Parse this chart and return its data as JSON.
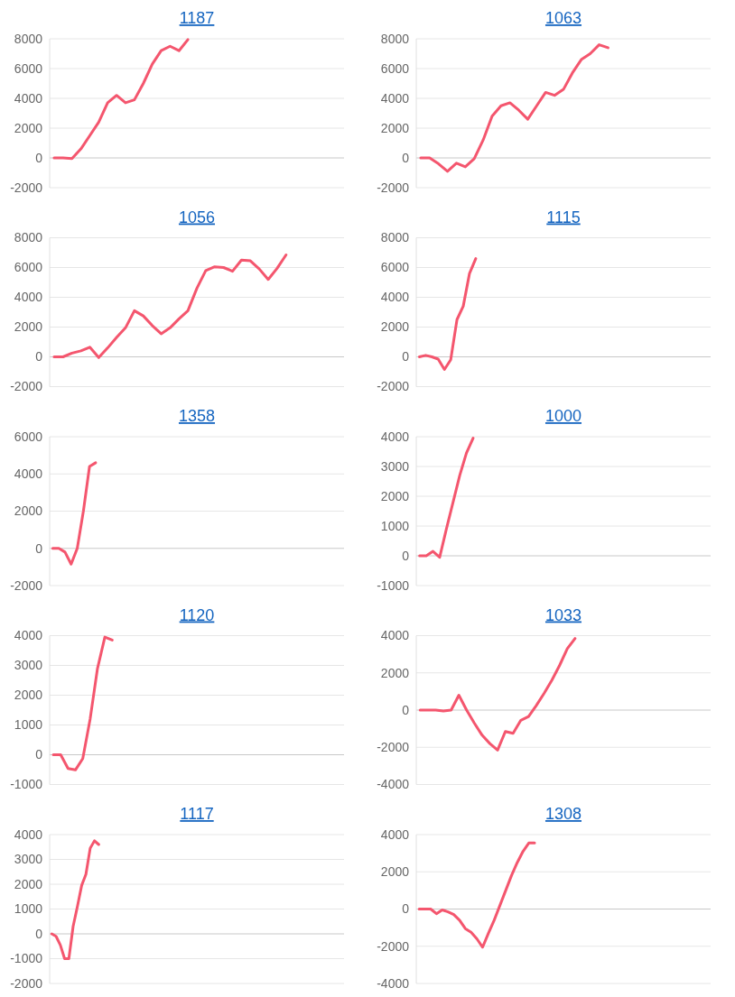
{
  "chart_data": [
    {
      "type": "line",
      "title": "1187",
      "color": "#f4566e",
      "grid": "y",
      "ylim": [
        -2000,
        8000
      ],
      "yticks": [
        -2000,
        0,
        2000,
        4000,
        6000,
        8000
      ],
      "categories": [
        null,
        null,
        null,
        null,
        null,
        null,
        null,
        null,
        null,
        null,
        null,
        null,
        null,
        null,
        null,
        null,
        null,
        null,
        null,
        null,
        null,
        null,
        null,
        null,
        null,
        null,
        null,
        null,
        null,
        null,
        null,
        null,
        null
      ],
      "values": [
        0,
        0,
        -50,
        600,
        1500,
        2400,
        3700,
        4200,
        3700,
        3900,
        5000,
        6300,
        7200,
        7500,
        7200,
        7950,
        null,
        null,
        null,
        null,
        null,
        null,
        null,
        null,
        null,
        null,
        null,
        null,
        null,
        null,
        null,
        null,
        null
      ]
    },
    {
      "type": "line",
      "title": "1063",
      "color": "#f4566e",
      "grid": "y",
      "ylim": [
        -2000,
        8000
      ],
      "yticks": [
        -2000,
        0,
        2000,
        4000,
        6000,
        8000
      ],
      "categories": [
        null,
        null,
        null,
        null,
        null,
        null,
        null,
        null,
        null,
        null,
        null,
        null,
        null,
        null,
        null,
        null,
        null,
        null,
        null,
        null,
        null,
        null,
        null,
        null,
        null,
        null,
        null,
        null,
        null,
        null,
        null,
        null,
        null
      ],
      "values": [
        0,
        0,
        -400,
        -900,
        -350,
        -600,
        -50,
        1200,
        2800,
        3500,
        3700,
        3200,
        2600,
        3500,
        4400,
        4200,
        4600,
        5700,
        6600,
        7000,
        7600,
        7400,
        null,
        null,
        null,
        null,
        null,
        null,
        null,
        null,
        null,
        null,
        null
      ]
    },
    {
      "type": "line",
      "title": "1056",
      "color": "#f4566e",
      "grid": "y",
      "ylim": [
        -2000,
        8000
      ],
      "yticks": [
        -2000,
        0,
        2000,
        4000,
        6000,
        8000
      ],
      "categories": [
        null,
        null,
        null,
        null,
        null,
        null,
        null,
        null,
        null,
        null,
        null,
        null,
        null,
        null,
        null,
        null,
        null,
        null,
        null,
        null,
        null,
        null,
        null,
        null,
        null,
        null,
        null,
        null,
        null,
        null,
        null,
        null,
        null
      ],
      "values": [
        0,
        0,
        250,
        400,
        650,
        -50,
        600,
        1300,
        1950,
        3100,
        2750,
        2100,
        1550,
        1950,
        2550,
        3100,
        4600,
        5800,
        6050,
        6000,
        5750,
        6500,
        6450,
        5900,
        5200,
        5950,
        6850,
        null,
        null,
        null,
        null,
        null,
        null
      ]
    },
    {
      "type": "line",
      "title": "1115",
      "color": "#f4566e",
      "grid": "y",
      "ylim": [
        -2000,
        8000
      ],
      "yticks": [
        -2000,
        0,
        2000,
        4000,
        6000,
        8000
      ],
      "categories": [
        null,
        null,
        null,
        null,
        null,
        null,
        null,
        null,
        null,
        null,
        null,
        null,
        null,
        null,
        null,
        null,
        null,
        null,
        null,
        null,
        null,
        null,
        null,
        null,
        null,
        null,
        null,
        null,
        null,
        null,
        null,
        null,
        null,
        null,
        null,
        null,
        null,
        null,
        null,
        null,
        null,
        null,
        null,
        null,
        null,
        null,
        null
      ],
      "values": [
        0,
        100,
        0,
        -150,
        -850,
        -200,
        2500,
        3400,
        5600,
        6600,
        null,
        null,
        null,
        null,
        null,
        null,
        null,
        null,
        null,
        null,
        null,
        null,
        null,
        null,
        null,
        null,
        null,
        null,
        null,
        null,
        null,
        null,
        null,
        null,
        null,
        null,
        null,
        null,
        null,
        null,
        null,
        null,
        null,
        null,
        null,
        null,
        null
      ]
    },
    {
      "type": "line",
      "title": "1358",
      "color": "#f4566e",
      "grid": "y",
      "ylim": [
        -2000,
        6000
      ],
      "yticks": [
        -2000,
        0,
        2000,
        4000,
        6000
      ],
      "categories": [
        null,
        null,
        null,
        null,
        null,
        null,
        null,
        null,
        null,
        null,
        null,
        null,
        null,
        null,
        null,
        null,
        null,
        null,
        null,
        null,
        null,
        null,
        null,
        null,
        null,
        null,
        null,
        null,
        null,
        null,
        null,
        null,
        null,
        null,
        null,
        null,
        null,
        null,
        null,
        null,
        null,
        null,
        null,
        null,
        null,
        null,
        null,
        null
      ],
      "values": [
        0,
        0,
        -200,
        -850,
        0,
        2000,
        4400,
        4600,
        null,
        null,
        null,
        null,
        null,
        null,
        null,
        null,
        null,
        null,
        null,
        null,
        null,
        null,
        null,
        null,
        null,
        null,
        null,
        null,
        null,
        null,
        null,
        null,
        null,
        null,
        null,
        null,
        null,
        null,
        null,
        null,
        null,
        null,
        null,
        null,
        null,
        null,
        null,
        null
      ]
    },
    {
      "type": "line",
      "title": "1000",
      "color": "#f4566e",
      "grid": "y",
      "ylim": [
        -1000,
        4000
      ],
      "yticks": [
        -1000,
        0,
        1000,
        2000,
        3000,
        4000
      ],
      "categories": [
        null,
        null,
        null,
        null,
        null,
        null,
        null,
        null,
        null,
        null,
        null,
        null,
        null,
        null,
        null,
        null,
        null,
        null,
        null,
        null,
        null,
        null,
        null,
        null,
        null,
        null,
        null,
        null,
        null,
        null,
        null,
        null,
        null,
        null,
        null,
        null,
        null,
        null,
        null,
        null,
        null,
        null,
        null,
        null
      ],
      "values": [
        0,
        0,
        150,
        -50,
        900,
        1800,
        2700,
        3450,
        3950,
        null,
        null,
        null,
        null,
        null,
        null,
        null,
        null,
        null,
        null,
        null,
        null,
        null,
        null,
        null,
        null,
        null,
        null,
        null,
        null,
        null,
        null,
        null,
        null,
        null,
        null,
        null,
        null,
        null,
        null,
        null,
        null,
        null,
        null,
        null
      ]
    },
    {
      "type": "line",
      "title": "1120",
      "color": "#f4566e",
      "grid": "y",
      "ylim": [
        -1000,
        4000
      ],
      "yticks": [
        -1000,
        0,
        1000,
        2000,
        3000,
        4000
      ],
      "categories": [
        null,
        null,
        null,
        null,
        null,
        null,
        null,
        null,
        null,
        null,
        null,
        null,
        null,
        null,
        null,
        null,
        null,
        null,
        null,
        null,
        null,
        null,
        null,
        null,
        null,
        null,
        null,
        null,
        null,
        null,
        null,
        null,
        null,
        null,
        null,
        null,
        null,
        null,
        null,
        null
      ],
      "values": [
        0,
        0,
        -460,
        -510,
        -130,
        1200,
        2900,
        3950,
        3850,
        null,
        null,
        null,
        null,
        null,
        null,
        null,
        null,
        null,
        null,
        null,
        null,
        null,
        null,
        null,
        null,
        null,
        null,
        null,
        null,
        null,
        null,
        null,
        null,
        null,
        null,
        null,
        null,
        null,
        null,
        null
      ]
    },
    {
      "type": "line",
      "title": "1033",
      "color": "#f4566e",
      "grid": "y",
      "ylim": [
        -4000,
        4000
      ],
      "yticks": [
        -4000,
        -2000,
        0,
        2000,
        4000
      ],
      "categories": [
        null,
        null,
        null,
        null,
        null,
        null,
        null,
        null,
        null,
        null,
        null,
        null,
        null,
        null,
        null,
        null,
        null,
        null,
        null,
        null,
        null,
        null,
        null,
        null,
        null,
        null,
        null,
        null,
        null,
        null,
        null,
        null,
        null,
        null,
        null,
        null,
        null,
        null
      ],
      "values": [
        0,
        0,
        0,
        -50,
        0,
        800,
        0,
        -700,
        -1350,
        -1800,
        -2150,
        -1150,
        -1250,
        -550,
        -350,
        250,
        900,
        1600,
        2400,
        3300,
        3850,
        null,
        null,
        null,
        null,
        null,
        null,
        null,
        null,
        null,
        null,
        null,
        null,
        null,
        null,
        null,
        null,
        null
      ]
    },
    {
      "type": "line",
      "title": "1117",
      "color": "#f4566e",
      "grid": "y",
      "ylim": [
        -2000,
        4000
      ],
      "yticks": [
        -2000,
        -1000,
        0,
        1000,
        2000,
        3000,
        4000
      ],
      "categories": [
        null,
        null,
        null,
        null,
        null,
        null,
        null,
        null,
        null,
        null,
        null,
        null,
        null,
        null,
        null,
        null,
        null,
        null,
        null,
        null,
        null,
        null,
        null,
        null,
        null,
        null,
        null,
        null,
        null,
        null,
        null,
        null,
        null,
        null,
        null,
        null,
        null,
        null,
        null,
        null,
        null,
        null,
        null,
        null,
        null,
        null,
        null,
        null,
        null,
        null,
        null,
        null,
        null,
        null,
        null,
        null,
        null,
        null,
        null,
        null,
        null,
        null,
        null,
        null,
        null,
        null,
        null,
        null,
        null
      ],
      "values": [
        0,
        -100,
        -450,
        -1000,
        -1000,
        300,
        1100,
        1950,
        2400,
        3450,
        3750,
        3600,
        null,
        null,
        null,
        null,
        null,
        null,
        null,
        null,
        null,
        null,
        null,
        null,
        null,
        null,
        null,
        null,
        null,
        null,
        null,
        null,
        null,
        null,
        null,
        null,
        null,
        null,
        null,
        null,
        null,
        null,
        null,
        null,
        null,
        null,
        null,
        null,
        null,
        null,
        null,
        null,
        null,
        null,
        null,
        null,
        null,
        null,
        null,
        null,
        null,
        null,
        null,
        null,
        null,
        null,
        null,
        null,
        null
      ]
    },
    {
      "type": "line",
      "title": "1308",
      "color": "#f4566e",
      "grid": "y",
      "ylim": [
        -4000,
        4000
      ],
      "yticks": [
        -4000,
        -2000,
        0,
        2000,
        4000
      ],
      "categories": [
        null,
        null,
        null,
        null,
        null,
        null,
        null,
        null,
        null,
        null,
        null,
        null,
        null,
        null,
        null,
        null,
        null,
        null,
        null,
        null,
        null,
        null,
        null,
        null,
        null,
        null,
        null,
        null,
        null,
        null,
        null,
        null,
        null,
        null,
        null,
        null,
        null,
        null,
        null,
        null,
        null,
        null,
        null,
        null,
        null,
        null,
        null,
        null,
        null,
        null,
        null
      ],
      "values": [
        0,
        0,
        0,
        -250,
        -50,
        -150,
        -300,
        -600,
        -1050,
        -1250,
        -1600,
        -2050,
        -1300,
        -600,
        200,
        1000,
        1800,
        2500,
        3100,
        3550,
        3550,
        null,
        null,
        null,
        null,
        null,
        null,
        null,
        null,
        null,
        null,
        null,
        null,
        null,
        null,
        null,
        null,
        null,
        null,
        null,
        null,
        null,
        null,
        null,
        null,
        null,
        null,
        null,
        null,
        null,
        null
      ]
    }
  ]
}
